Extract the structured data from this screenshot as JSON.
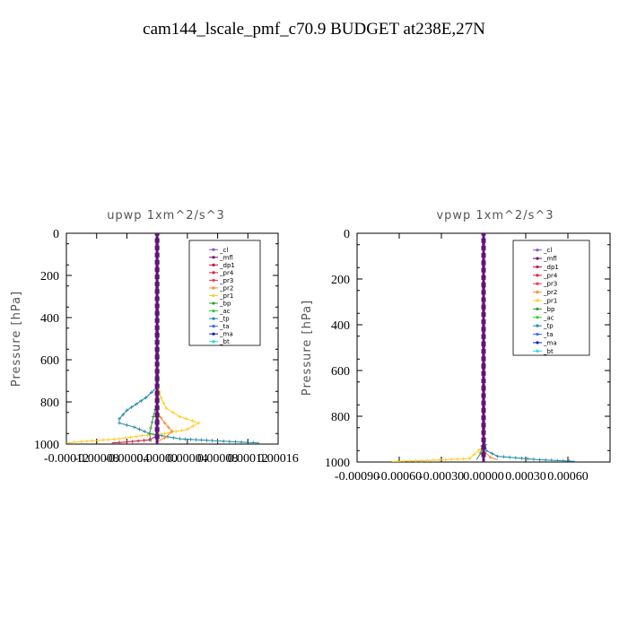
{
  "title": "cam144_lscale_pmf_c70.9  BUDGET at238E,27N",
  "chart_data": [
    {
      "type": "line",
      "title": "upwp   1xm^2/s^3",
      "ylabel": "Pressure [hPa]",
      "xlim": [
        -0.00012,
        0.00016
      ],
      "ylim": [
        1000,
        0
      ],
      "xticks": [
        "-0.00012",
        "-0.00008",
        "-0.00004",
        "0.00000",
        "0.00004",
        "0.00008",
        "0.00012",
        "0.00016"
      ],
      "yticks": [
        "0",
        "200",
        "400",
        "600",
        "800",
        "1000"
      ],
      "legend": [
        "_cl",
        "_mfl",
        "_dp1",
        "_pr4",
        "_pr3",
        "_pr2",
        "_pr1",
        "_bp",
        "_ac",
        "_tp",
        "_ta",
        "_ma",
        "_bt"
      ],
      "legend_colors": [
        "#8855cc",
        "#661177",
        "#cc1144",
        "#dd2244",
        "#ee3355",
        "#ff8833",
        "#ffcc22",
        "#339933",
        "#33cc33",
        "#2288aa",
        "#3366ff",
        "#1122aa",
        "#22dddd"
      ],
      "series": [
        {
          "name": "_pr1",
          "points": [
            [
              0,
              0
            ],
            [
              0,
              700
            ],
            [
              5e-06,
              780
            ],
            [
              1.2e-05,
              830
            ],
            [
              3e-05,
              870
            ],
            [
              5.5e-05,
              900
            ],
            [
              4e-05,
              930
            ],
            [
              1e-05,
              950
            ],
            [
              -2e-05,
              960
            ],
            [
              -5e-05,
              975
            ],
            [
              -0.0001,
              988
            ],
            [
              -0.00012,
              995
            ]
          ]
        },
        {
          "name": "_tp",
          "points": [
            [
              0,
              0
            ],
            [
              0,
              730
            ],
            [
              -1.5e-05,
              780
            ],
            [
              -4e-05,
              840
            ],
            [
              -5e-05,
              880
            ],
            [
              -5e-05,
              900
            ],
            [
              -3e-05,
              920
            ],
            [
              -1e-05,
              950
            ],
            [
              3e-05,
              975
            ],
            [
              8e-05,
              985
            ],
            [
              0.000135,
              995
            ]
          ]
        },
        {
          "name": "_pr2",
          "points": [
            [
              0,
              0
            ],
            [
              0,
              850
            ],
            [
              1e-05,
              900
            ],
            [
              2e-05,
              940
            ],
            [
              1e-05,
              970
            ],
            [
              0,
              990
            ]
          ]
        },
        {
          "name": "_bp",
          "points": [
            [
              0,
              0
            ],
            [
              0,
              800
            ],
            [
              -5e-06,
              870
            ],
            [
              -1e-05,
              950
            ],
            [
              -8e-06,
              990
            ]
          ]
        },
        {
          "name": "_dp1",
          "points": [
            [
              0,
              0
            ],
            [
              0,
              960
            ],
            [
              -1e-05,
              980
            ],
            [
              -4e-05,
              990
            ],
            [
              -6e-05,
              995
            ]
          ]
        },
        {
          "name": "_bt",
          "points": [
            [
              0,
              0
            ],
            [
              0,
              1000
            ]
          ]
        },
        {
          "name": "_mfl",
          "points": [
            [
              0,
              0
            ],
            [
              0,
              1000
            ]
          ]
        }
      ]
    },
    {
      "type": "line",
      "title": "vpwp   1xm^2/s^3",
      "ylabel": "Pressure [hPa]",
      "xlim": [
        -0.0009,
        0.0009
      ],
      "ylim": [
        1000,
        0
      ],
      "xticks": [
        "-0.00090",
        "-0.00060",
        "-0.00030",
        "0.00000",
        "0.00030",
        "0.00060"
      ],
      "yticks": [
        "0",
        "200",
        "400",
        "600",
        "800",
        "1000"
      ],
      "legend": [
        "_cl",
        "_mfl",
        "_dp1",
        "_pr4",
        "_pr3",
        "_pr2",
        "_pr1",
        "_bp",
        "_ac",
        "_tp",
        "_ta",
        "_ma",
        "_bt"
      ],
      "legend_colors": [
        "#8855cc",
        "#661177",
        "#cc1144",
        "#dd2244",
        "#ee3355",
        "#ff8833",
        "#ffcc22",
        "#339933",
        "#33cc33",
        "#2288aa",
        "#3366ff",
        "#1122aa",
        "#22dddd"
      ],
      "series": [
        {
          "name": "_tp",
          "points": [
            [
              0,
              0
            ],
            [
              0,
              870
            ],
            [
              2e-05,
              950
            ],
            [
              0.0001,
              975
            ],
            [
              0.0004,
              990
            ],
            [
              0.00065,
              997
            ]
          ]
        },
        {
          "name": "_pr1",
          "points": [
            [
              0,
              0
            ],
            [
              0,
              930
            ],
            [
              -0.0001,
              985
            ],
            [
              -0.0004,
              993
            ],
            [
              -0.00065,
              998
            ]
          ]
        },
        {
          "name": "_pr2",
          "points": [
            [
              0,
              0
            ],
            [
              0,
              950
            ],
            [
              5e-05,
              980
            ],
            [
              0.0001,
              990
            ]
          ]
        },
        {
          "name": "_bp",
          "points": [
            [
              0,
              0
            ],
            [
              0,
              900
            ],
            [
              -2e-05,
              960
            ],
            [
              -5e-05,
              990
            ]
          ]
        },
        {
          "name": "_bt",
          "points": [
            [
              0,
              0
            ],
            [
              0,
              1000
            ]
          ]
        },
        {
          "name": "_mfl",
          "points": [
            [
              0,
              0
            ],
            [
              0,
              1000
            ]
          ]
        }
      ]
    }
  ]
}
